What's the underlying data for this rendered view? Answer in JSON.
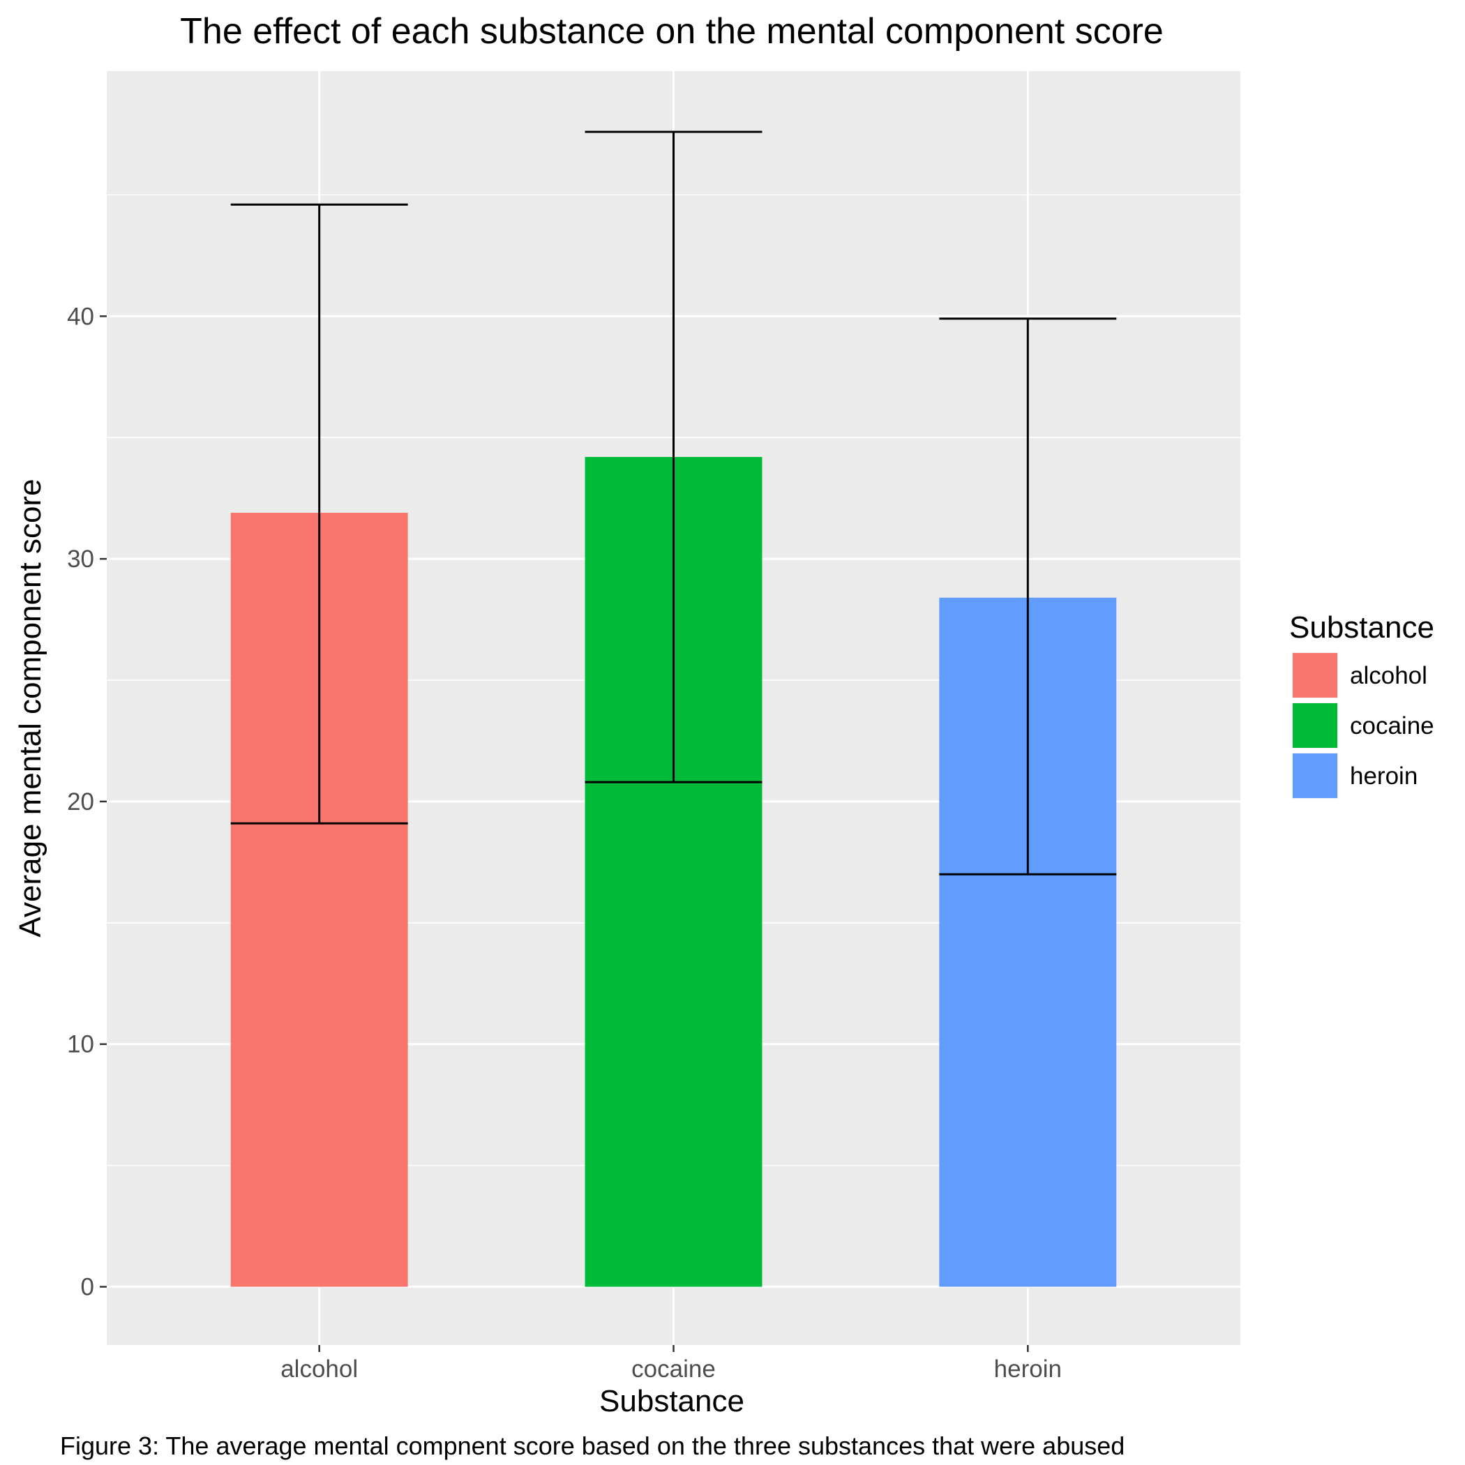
{
  "chart_data": {
    "type": "bar",
    "title": "The effect of each substance on the mental component score",
    "xlabel": "Substance",
    "ylabel": "Average mental component score",
    "categories": [
      "alcohol",
      "cocaine",
      "heroin"
    ],
    "values": [
      31.9,
      34.2,
      28.4
    ],
    "error_bars": {
      "lower": [
        19.1,
        20.8,
        17.0
      ],
      "upper": [
        44.6,
        47.6,
        39.9
      ]
    },
    "colors": [
      "#F8766D",
      "#00BA38",
      "#619CFF"
    ],
    "ylim": [
      -2.4,
      50.1
    ],
    "yticks": [
      0,
      10,
      20,
      30,
      40
    ],
    "ytick_labels": [
      "0",
      "10",
      "20",
      "30",
      "40"
    ],
    "grid": true,
    "legend": {
      "title": "Substance",
      "position": "right",
      "entries": [
        "alcohol",
        "cocaine",
        "heroin"
      ]
    }
  },
  "caption": "Figure 3: The average mental compnent score based on the three substances that were abused"
}
